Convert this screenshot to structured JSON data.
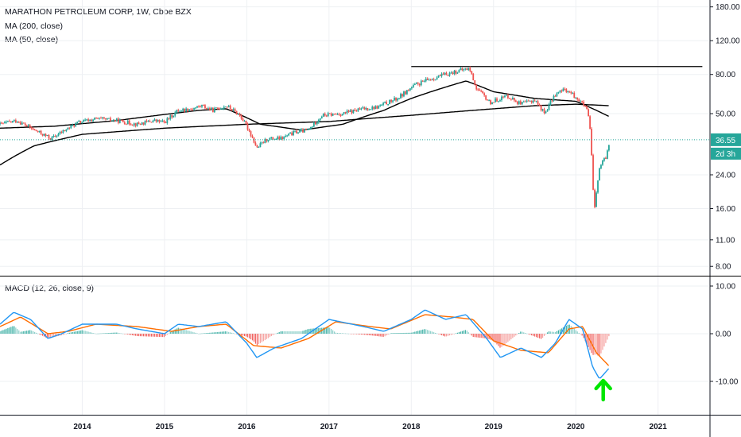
{
  "chart_data": [
    {
      "type": "candlestick",
      "title": "MARATHON PETROLEUM CORP, 1W, Cboe BZX",
      "indicators": [
        "MA (200, close)",
        "MA (50, close)"
      ],
      "y_scale": "log",
      "ylim": [
        7.5,
        190
      ],
      "yticks": [
        "180.00",
        "120.00",
        "80.00",
        "50.00",
        "36.55",
        "24.00",
        "16.00",
        "11.00",
        "8.00"
      ],
      "last_price_label": "36.55",
      "countdown_label": "2d 3h",
      "price_path": [
        [
          "2013-01-01",
          44
        ],
        [
          "2013-03-15",
          46
        ],
        [
          "2013-06-01",
          41
        ],
        [
          "2013-08-15",
          37
        ],
        [
          "2013-10-01",
          40
        ],
        [
          "2013-12-15",
          45
        ],
        [
          "2014-03-01",
          47
        ],
        [
          "2014-06-01",
          46
        ],
        [
          "2014-09-01",
          44
        ],
        [
          "2014-11-15",
          46
        ],
        [
          "2015-01-01",
          45
        ],
        [
          "2015-03-01",
          52
        ],
        [
          "2015-05-01",
          53
        ],
        [
          "2015-06-15",
          55
        ],
        [
          "2015-08-01",
          52
        ],
        [
          "2015-10-01",
          55
        ],
        [
          "2015-12-01",
          49
        ],
        [
          "2016-01-15",
          40
        ],
        [
          "2016-02-15",
          33
        ],
        [
          "2016-04-01",
          37
        ],
        [
          "2016-06-01",
          37
        ],
        [
          "2016-08-01",
          40
        ],
        [
          "2016-10-01",
          41
        ],
        [
          "2016-12-01",
          49
        ],
        [
          "2017-03-01",
          50
        ],
        [
          "2017-06-01",
          53
        ],
        [
          "2017-08-01",
          54
        ],
        [
          "2017-11-01",
          60
        ],
        [
          "2017-12-15",
          66
        ],
        [
          "2018-01-15",
          70
        ],
        [
          "2018-03-01",
          74
        ],
        [
          "2018-05-01",
          78
        ],
        [
          "2018-07-01",
          82
        ],
        [
          "2018-09-15",
          86
        ],
        [
          "2018-10-15",
          68
        ],
        [
          "2018-12-15",
          57
        ],
        [
          "2019-03-01",
          62
        ],
        [
          "2019-05-01",
          56
        ],
        [
          "2019-07-01",
          59
        ],
        [
          "2019-08-15",
          50
        ],
        [
          "2019-10-01",
          63
        ],
        [
          "2019-11-15",
          67
        ],
        [
          "2020-01-01",
          61
        ],
        [
          "2020-02-15",
          54
        ],
        [
          "2020-03-01",
          45
        ],
        [
          "2020-03-15",
          22
        ],
        [
          "2020-03-22",
          15
        ],
        [
          "2020-04-15",
          26
        ],
        [
          "2020-05-15",
          30
        ],
        [
          "2020-06-01",
          36.55
        ]
      ],
      "ma200_path": [
        [
          "2013-01-01",
          27
        ],
        [
          "2013-06-01",
          34
        ],
        [
          "2014-01-01",
          39
        ],
        [
          "2015-01-01",
          42
        ],
        [
          "2016-01-01",
          44
        ],
        [
          "2017-01-01",
          45.5
        ],
        [
          "2018-01-01",
          49
        ],
        [
          "2019-01-01",
          53
        ],
        [
          "2019-07-01",
          55
        ],
        [
          "2020-01-01",
          56
        ],
        [
          "2020-06-01",
          55
        ]
      ],
      "ma50_path": [
        [
          "2013-01-01",
          42
        ],
        [
          "2013-09-01",
          43
        ],
        [
          "2014-06-01",
          46
        ],
        [
          "2015-06-01",
          52
        ],
        [
          "2015-10-01",
          53
        ],
        [
          "2016-03-01",
          44
        ],
        [
          "2016-09-01",
          41
        ],
        [
          "2017-03-01",
          44
        ],
        [
          "2017-09-01",
          52
        ],
        [
          "2018-01-01",
          60
        ],
        [
          "2018-09-01",
          74
        ],
        [
          "2019-01-01",
          65
        ],
        [
          "2019-07-01",
          60
        ],
        [
          "2020-01-01",
          58
        ],
        [
          "2020-03-01",
          54
        ],
        [
          "2020-06-01",
          48
        ]
      ],
      "horizontal_line": {
        "x_start": "2018-01-01",
        "x_end": "2021-07-15",
        "y": 88
      }
    },
    {
      "type": "line",
      "title": "MACD (12, 26, close, 9)",
      "ylim": [
        -17,
        12
      ],
      "yticks": [
        "10.00",
        "0.00",
        "-10.00"
      ],
      "macd": [
        [
          "2013-01-01",
          2
        ],
        [
          "2013-03-01",
          4.5
        ],
        [
          "2013-05-15",
          3
        ],
        [
          "2013-08-01",
          -1
        ],
        [
          "2013-10-01",
          0
        ],
        [
          "2014-01-01",
          2
        ],
        [
          "2014-06-01",
          2
        ],
        [
          "2014-09-01",
          1
        ],
        [
          "2015-01-01",
          0
        ],
        [
          "2015-03-01",
          2
        ],
        [
          "2015-06-01",
          1.5
        ],
        [
          "2015-10-01",
          2.5
        ],
        [
          "2016-01-01",
          -2
        ],
        [
          "2016-02-15",
          -5
        ],
        [
          "2016-05-01",
          -3
        ],
        [
          "2016-09-01",
          -1
        ],
        [
          "2017-01-01",
          3
        ],
        [
          "2017-06-01",
          1.5
        ],
        [
          "2017-09-01",
          0.5
        ],
        [
          "2018-01-01",
          3
        ],
        [
          "2018-03-01",
          5
        ],
        [
          "2018-06-01",
          3
        ],
        [
          "2018-09-01",
          4
        ],
        [
          "2018-12-01",
          -1
        ],
        [
          "2019-02-01",
          -5
        ],
        [
          "2019-05-01",
          -3
        ],
        [
          "2019-08-01",
          -5
        ],
        [
          "2019-10-01",
          -2
        ],
        [
          "2019-12-01",
          3
        ],
        [
          "2020-02-01",
          1
        ],
        [
          "2020-03-15",
          -7
        ],
        [
          "2020-04-15",
          -9.5
        ],
        [
          "2020-06-01",
          -7
        ]
      ],
      "signal": [
        [
          "2013-01-01",
          1.5
        ],
        [
          "2013-04-01",
          3.5
        ],
        [
          "2013-08-01",
          0
        ],
        [
          "2013-11-01",
          0.5
        ],
        [
          "2014-03-01",
          2
        ],
        [
          "2014-09-01",
          1.5
        ],
        [
          "2015-02-01",
          0.5
        ],
        [
          "2015-06-01",
          1.5
        ],
        [
          "2015-10-01",
          2
        ],
        [
          "2016-02-01",
          -2.5
        ],
        [
          "2016-06-01",
          -3
        ],
        [
          "2016-10-01",
          -1
        ],
        [
          "2017-02-01",
          2.5
        ],
        [
          "2017-07-01",
          1.5
        ],
        [
          "2017-10-01",
          1
        ],
        [
          "2018-03-01",
          4
        ],
        [
          "2018-07-01",
          3.5
        ],
        [
          "2018-10-01",
          3
        ],
        [
          "2019-01-01",
          -1.5
        ],
        [
          "2019-05-01",
          -3.5
        ],
        [
          "2019-09-01",
          -4
        ],
        [
          "2019-12-01",
          1
        ],
        [
          "2020-02-01",
          1.5
        ],
        [
          "2020-04-01",
          -4
        ],
        [
          "2020-06-01",
          -7
        ]
      ]
    }
  ],
  "time_axis": {
    "ticks": [
      "2014",
      "2015",
      "2016",
      "2017",
      "2018",
      "2019",
      "2020",
      "2021"
    ],
    "range": [
      "2013-01-01",
      "2021-08-15"
    ]
  },
  "colors": {
    "up": "#26a69a",
    "down": "#ef5350",
    "ma_line": "#000000",
    "macd_line": "#2196f3",
    "signal_line": "#ff6d00",
    "last_price": "#26a69a",
    "arrow": "#00e600",
    "grid": "#eef0f3",
    "divider": "#000000"
  },
  "annotation": {
    "icon": "up-arrow-icon",
    "x": "2020-05-01"
  }
}
